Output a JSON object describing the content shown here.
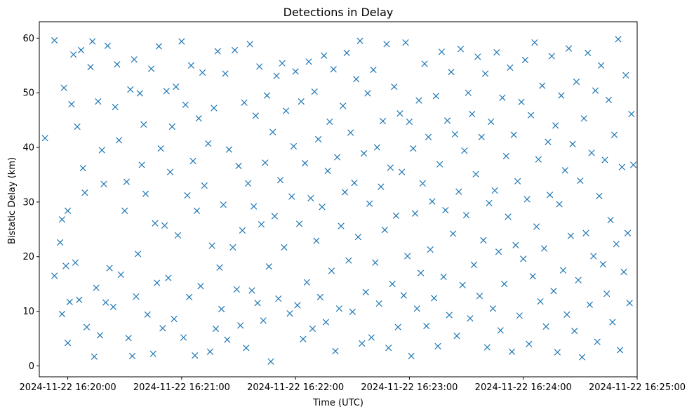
{
  "chart_data": {
    "type": "scatter",
    "title": "Detections in Delay",
    "xlabel": "Time (UTC)",
    "ylabel": "Bistatic Delay (km)",
    "xlim": [
      "2024-11-22 16:19:45",
      "2024-11-22 16:25:00"
    ],
    "ylim": [
      -2,
      63
    ],
    "x_ticks": [
      "2024-11-22 16:20:00",
      "2024-11-22 16:21:00",
      "2024-11-22 16:22:00",
      "2024-11-22 16:23:00",
      "2024-11-22 16:24:00",
      "2024-11-22 16:25:00"
    ],
    "y_ticks": [
      0,
      10,
      20,
      30,
      40,
      50,
      60
    ],
    "grid": false,
    "legend": "none",
    "marker": "x",
    "color": "#1f77b4",
    "series": [
      {
        "x": [
          "2024-11-22 16:19:48",
          "2024-11-22 16:19:53",
          "2024-11-22 16:19:53",
          "2024-11-22 16:19:56",
          "2024-11-22 16:19:57",
          "2024-11-22 16:19:57",
          "2024-11-22 16:19:58",
          "2024-11-22 16:19:59",
          "2024-11-22 16:20:00",
          "2024-11-22 16:20:00",
          "2024-11-22 16:20:01",
          "2024-11-22 16:20:02",
          "2024-11-22 16:20:03",
          "2024-11-22 16:20:04",
          "2024-11-22 16:20:05",
          "2024-11-22 16:20:06",
          "2024-11-22 16:20:07",
          "2024-11-22 16:20:08",
          "2024-11-22 16:20:09",
          "2024-11-22 16:20:10",
          "2024-11-22 16:20:12",
          "2024-11-22 16:20:13",
          "2024-11-22 16:20:14",
          "2024-11-22 16:20:15",
          "2024-11-22 16:20:16",
          "2024-11-22 16:20:17",
          "2024-11-22 16:20:18",
          "2024-11-22 16:20:19",
          "2024-11-22 16:20:20",
          "2024-11-22 16:20:21",
          "2024-11-22 16:20:22",
          "2024-11-22 16:20:24",
          "2024-11-22 16:20:25",
          "2024-11-22 16:20:26",
          "2024-11-22 16:20:27",
          "2024-11-22 16:20:28",
          "2024-11-22 16:20:30",
          "2024-11-22 16:20:31",
          "2024-11-22 16:20:32",
          "2024-11-22 16:20:33",
          "2024-11-22 16:20:34",
          "2024-11-22 16:20:35",
          "2024-11-22 16:20:36",
          "2024-11-22 16:20:37",
          "2024-11-22 16:20:38",
          "2024-11-22 16:20:39",
          "2024-11-22 16:20:40",
          "2024-11-22 16:20:41",
          "2024-11-22 16:20:42",
          "2024-11-22 16:20:44",
          "2024-11-22 16:20:45",
          "2024-11-22 16:20:46",
          "2024-11-22 16:20:47",
          "2024-11-22 16:20:48",
          "2024-11-22 16:20:49",
          "2024-11-22 16:20:50",
          "2024-11-22 16:20:51",
          "2024-11-22 16:20:52",
          "2024-11-22 16:20:53",
          "2024-11-22 16:20:54",
          "2024-11-22 16:20:55",
          "2024-11-22 16:20:56",
          "2024-11-22 16:20:57",
          "2024-11-22 16:20:58",
          "2024-11-22 16:21:00",
          "2024-11-22 16:21:01",
          "2024-11-22 16:21:02",
          "2024-11-22 16:21:03",
          "2024-11-22 16:21:04",
          "2024-11-22 16:21:05",
          "2024-11-22 16:21:06",
          "2024-11-22 16:21:07",
          "2024-11-22 16:21:08",
          "2024-11-22 16:21:09",
          "2024-11-22 16:21:10",
          "2024-11-22 16:21:11",
          "2024-11-22 16:21:12",
          "2024-11-22 16:21:14",
          "2024-11-22 16:21:15",
          "2024-11-22 16:21:16",
          "2024-11-22 16:21:17",
          "2024-11-22 16:21:18",
          "2024-11-22 16:21:19",
          "2024-11-22 16:21:20",
          "2024-11-22 16:21:21",
          "2024-11-22 16:21:22",
          "2024-11-22 16:21:23",
          "2024-11-22 16:21:24",
          "2024-11-22 16:21:25",
          "2024-11-22 16:21:27",
          "2024-11-22 16:21:28",
          "2024-11-22 16:21:29",
          "2024-11-22 16:21:30",
          "2024-11-22 16:21:31",
          "2024-11-22 16:21:32",
          "2024-11-22 16:21:33",
          "2024-11-22 16:21:34",
          "2024-11-22 16:21:35",
          "2024-11-22 16:21:36",
          "2024-11-22 16:21:37",
          "2024-11-22 16:21:38",
          "2024-11-22 16:21:39",
          "2024-11-22 16:21:40",
          "2024-11-22 16:21:41",
          "2024-11-22 16:21:42",
          "2024-11-22 16:21:43",
          "2024-11-22 16:21:44",
          "2024-11-22 16:21:45",
          "2024-11-22 16:21:46",
          "2024-11-22 16:21:47",
          "2024-11-22 16:21:48",
          "2024-11-22 16:21:49",
          "2024-11-22 16:21:50",
          "2024-11-22 16:21:51",
          "2024-11-22 16:21:52",
          "2024-11-22 16:21:53",
          "2024-11-22 16:21:54",
          "2024-11-22 16:21:55",
          "2024-11-22 16:21:57",
          "2024-11-22 16:21:58",
          "2024-11-22 16:21:59",
          "2024-11-22 16:22:00",
          "2024-11-22 16:22:01",
          "2024-11-22 16:22:02",
          "2024-11-22 16:22:03",
          "2024-11-22 16:22:04",
          "2024-11-22 16:22:05",
          "2024-11-22 16:22:06",
          "2024-11-22 16:22:07",
          "2024-11-22 16:22:08",
          "2024-11-22 16:22:09",
          "2024-11-22 16:22:10",
          "2024-11-22 16:22:11",
          "2024-11-22 16:22:12",
          "2024-11-22 16:22:13",
          "2024-11-22 16:22:14",
          "2024-11-22 16:22:15",
          "2024-11-22 16:22:16",
          "2024-11-22 16:22:17",
          "2024-11-22 16:22:18",
          "2024-11-22 16:22:19",
          "2024-11-22 16:22:20",
          "2024-11-22 16:22:21",
          "2024-11-22 16:22:22",
          "2024-11-22 16:22:23",
          "2024-11-22 16:22:24",
          "2024-11-22 16:22:25",
          "2024-11-22 16:22:26",
          "2024-11-22 16:22:27",
          "2024-11-22 16:22:28",
          "2024-11-22 16:22:29",
          "2024-11-22 16:22:30",
          "2024-11-22 16:22:31",
          "2024-11-22 16:22:32",
          "2024-11-22 16:22:33",
          "2024-11-22 16:22:34",
          "2024-11-22 16:22:35",
          "2024-11-22 16:22:36",
          "2024-11-22 16:22:37",
          "2024-11-22 16:22:38",
          "2024-11-22 16:22:39",
          "2024-11-22 16:22:40",
          "2024-11-22 16:22:41",
          "2024-11-22 16:22:42",
          "2024-11-22 16:22:43",
          "2024-11-22 16:22:44",
          "2024-11-22 16:22:45",
          "2024-11-22 16:22:46",
          "2024-11-22 16:22:47",
          "2024-11-22 16:22:48",
          "2024-11-22 16:22:49",
          "2024-11-22 16:22:50",
          "2024-11-22 16:22:51",
          "2024-11-22 16:22:52",
          "2024-11-22 16:22:53",
          "2024-11-22 16:22:54",
          "2024-11-22 16:22:55",
          "2024-11-22 16:22:56",
          "2024-11-22 16:22:57",
          "2024-11-22 16:22:58",
          "2024-11-22 16:22:59",
          "2024-11-22 16:23:00",
          "2024-11-22 16:23:01",
          "2024-11-22 16:23:02",
          "2024-11-22 16:23:03",
          "2024-11-22 16:23:04",
          "2024-11-22 16:23:05",
          "2024-11-22 16:23:06",
          "2024-11-22 16:23:07",
          "2024-11-22 16:23:08",
          "2024-11-22 16:23:09",
          "2024-11-22 16:23:10",
          "2024-11-22 16:23:11",
          "2024-11-22 16:23:12",
          "2024-11-22 16:23:13",
          "2024-11-22 16:23:14",
          "2024-11-22 16:23:15",
          "2024-11-22 16:23:16",
          "2024-11-22 16:23:17",
          "2024-11-22 16:23:18",
          "2024-11-22 16:23:19",
          "2024-11-22 16:23:20",
          "2024-11-22 16:23:21",
          "2024-11-22 16:23:22",
          "2024-11-22 16:23:23",
          "2024-11-22 16:23:24",
          "2024-11-22 16:23:25",
          "2024-11-22 16:23:26",
          "2024-11-22 16:23:27",
          "2024-11-22 16:23:28",
          "2024-11-22 16:23:29",
          "2024-11-22 16:23:30",
          "2024-11-22 16:23:31",
          "2024-11-22 16:23:32",
          "2024-11-22 16:23:33",
          "2024-11-22 16:23:34",
          "2024-11-22 16:23:35",
          "2024-11-22 16:23:36",
          "2024-11-22 16:23:37",
          "2024-11-22 16:23:38",
          "2024-11-22 16:23:39",
          "2024-11-22 16:23:40",
          "2024-11-22 16:23:41",
          "2024-11-22 16:23:42",
          "2024-11-22 16:23:43",
          "2024-11-22 16:23:44",
          "2024-11-22 16:23:45",
          "2024-11-22 16:23:46",
          "2024-11-22 16:23:47",
          "2024-11-22 16:23:48",
          "2024-11-22 16:23:49",
          "2024-11-22 16:23:50",
          "2024-11-22 16:23:51",
          "2024-11-22 16:23:52",
          "2024-11-22 16:23:53",
          "2024-11-22 16:23:54",
          "2024-11-22 16:23:55",
          "2024-11-22 16:23:56",
          "2024-11-22 16:23:57",
          "2024-11-22 16:23:58",
          "2024-11-22 16:23:59",
          "2024-11-22 16:24:00",
          "2024-11-22 16:24:01",
          "2024-11-22 16:24:02",
          "2024-11-22 16:24:03",
          "2024-11-22 16:24:04",
          "2024-11-22 16:24:05",
          "2024-11-22 16:24:06",
          "2024-11-22 16:24:07",
          "2024-11-22 16:24:08",
          "2024-11-22 16:24:09",
          "2024-11-22 16:24:10",
          "2024-11-22 16:24:11",
          "2024-11-22 16:24:12",
          "2024-11-22 16:24:13",
          "2024-11-22 16:24:14",
          "2024-11-22 16:24:15",
          "2024-11-22 16:24:16",
          "2024-11-22 16:24:17",
          "2024-11-22 16:24:18",
          "2024-11-22 16:24:19",
          "2024-11-22 16:24:20",
          "2024-11-22 16:24:21",
          "2024-11-22 16:24:22",
          "2024-11-22 16:24:23",
          "2024-11-22 16:24:24",
          "2024-11-22 16:24:25",
          "2024-11-22 16:24:26",
          "2024-11-22 16:24:27",
          "2024-11-22 16:24:28",
          "2024-11-22 16:24:29",
          "2024-11-22 16:24:30",
          "2024-11-22 16:24:31",
          "2024-11-22 16:24:32",
          "2024-11-22 16:24:33",
          "2024-11-22 16:24:34",
          "2024-11-22 16:24:35",
          "2024-11-22 16:24:36",
          "2024-11-22 16:24:37",
          "2024-11-22 16:24:38",
          "2024-11-22 16:24:39",
          "2024-11-22 16:24:40",
          "2024-11-22 16:24:41",
          "2024-11-22 16:24:42",
          "2024-11-22 16:24:43",
          "2024-11-22 16:24:44",
          "2024-11-22 16:24:45",
          "2024-11-22 16:24:46",
          "2024-11-22 16:24:47",
          "2024-11-22 16:24:48",
          "2024-11-22 16:24:49",
          "2024-11-22 16:24:50",
          "2024-11-22 16:24:51",
          "2024-11-22 16:24:52",
          "2024-11-22 16:24:53",
          "2024-11-22 16:24:54",
          "2024-11-22 16:24:55",
          "2024-11-22 16:24:56",
          "2024-11-22 16:24:57",
          "2024-11-22 16:24:58"
        ],
        "y": [
          41.7,
          16.5,
          59.6,
          22.6,
          26.8,
          9.5,
          50.9,
          18.3,
          28.4,
          4.2,
          11.7,
          47.9,
          57.0,
          18.9,
          43.8,
          12.1,
          57.8,
          36.2,
          31.7,
          7.1,
          54.7,
          59.4,
          1.7,
          14.3,
          48.4,
          5.6,
          39.5,
          33.3,
          11.6,
          58.6,
          17.9,
          10.8,
          47.4,
          55.2,
          41.3,
          16.7,
          28.4,
          33.7,
          5.1,
          50.6,
          1.8,
          56.1,
          12.7,
          20.5,
          49.9,
          36.8,
          44.2,
          31.5,
          9.4,
          54.4,
          2.2,
          26.1,
          15.2,
          58.5,
          39.8,
          6.9,
          25.7,
          50.3,
          16.1,
          35.5,
          43.8,
          8.6,
          51.1,
          23.9,
          59.4,
          5.2,
          47.8,
          31.2,
          12.6,
          55.0,
          37.5,
          1.9,
          28.4,
          45.3,
          14.6,
          53.7,
          33.0,
          40.7,
          2.6,
          22.0,
          47.2,
          6.8,
          57.6,
          18.0,
          10.4,
          29.5,
          53.5,
          4.8,
          39.6,
          21.7,
          57.8,
          14.0,
          36.6,
          7.4,
          24.8,
          48.2,
          3.3,
          33.4,
          58.9,
          13.8,
          29.2,
          45.8,
          11.5,
          54.8,
          25.9,
          8.3,
          37.2,
          49.5,
          18.2,
          0.8,
          42.8,
          27.4,
          53.1,
          12.3,
          34.0,
          55.4,
          21.7,
          46.7,
          9.6,
          31.0,
          40.2,
          53.9,
          11.1,
          26.0,
          48.4,
          4.9,
          37.1,
          15.3,
          55.7,
          30.7,
          6.8,
          50.2,
          22.9,
          41.5,
          12.6,
          29.1,
          56.8,
          8.0,
          35.7,
          44.7,
          17.4,
          54.3,
          2.7,
          38.2,
          10.5,
          25.6,
          47.6,
          31.8,
          57.3,
          19.3,
          42.7,
          9.9,
          33.5,
          52.5,
          23.6,
          59.5,
          4.1,
          38.9,
          13.5,
          49.9,
          29.7,
          5.2,
          54.2,
          18.9,
          40.0,
          11.4,
          32.8,
          44.8,
          24.9,
          58.9,
          3.3,
          36.3,
          15.0,
          51.1,
          27.5,
          7.1,
          46.2,
          35.5,
          12.9,
          59.2,
          20.1,
          44.7,
          1.8,
          39.8,
          27.9,
          10.5,
          48.6,
          17.0,
          33.4,
          55.3,
          7.3,
          41.9,
          21.3,
          30.1,
          12.4,
          49.4,
          3.6,
          36.9,
          57.5,
          16.3,
          28.5,
          44.9,
          9.3,
          53.8,
          24.2,
          42.4,
          5.5,
          31.9,
          58.0,
          14.8,
          39.4,
          27.6,
          50.0,
          8.7,
          46.1,
          18.5,
          35.1,
          56.6,
          12.8,
          41.9,
          23.0,
          53.5,
          3.4,
          29.8,
          44.7,
          10.5,
          32.1,
          57.4,
          20.9,
          6.5,
          49.1,
          15.0,
          38.4,
          27.3,
          54.6,
          2.6,
          42.3,
          22.1,
          33.8,
          9.2,
          48.3,
          19.6,
          56.0,
          30.5,
          4.0,
          45.9,
          16.4,
          59.2,
          25.5,
          37.8,
          11.8,
          51.3,
          21.5,
          7.2,
          41.0,
          31.3,
          56.7,
          13.7,
          44.0,
          2.5,
          29.6,
          49.5,
          17.5,
          35.8,
          9.4,
          58.1,
          23.8,
          40.6,
          6.4,
          52.0,
          15.7,
          33.9,
          1.6,
          45.3,
          24.3,
          57.3,
          11.2,
          39.0,
          20.1,
          50.4,
          4.4,
          31.1,
          55.0,
          18.6,
          37.7,
          13.2,
          48.7,
          26.7,
          8.0,
          42.3,
          22.3,
          59.8,
          2.9,
          36.4,
          17.2,
          53.2,
          24.3,
          11.5,
          46.1,
          36.8
        ]
      }
    ]
  }
}
